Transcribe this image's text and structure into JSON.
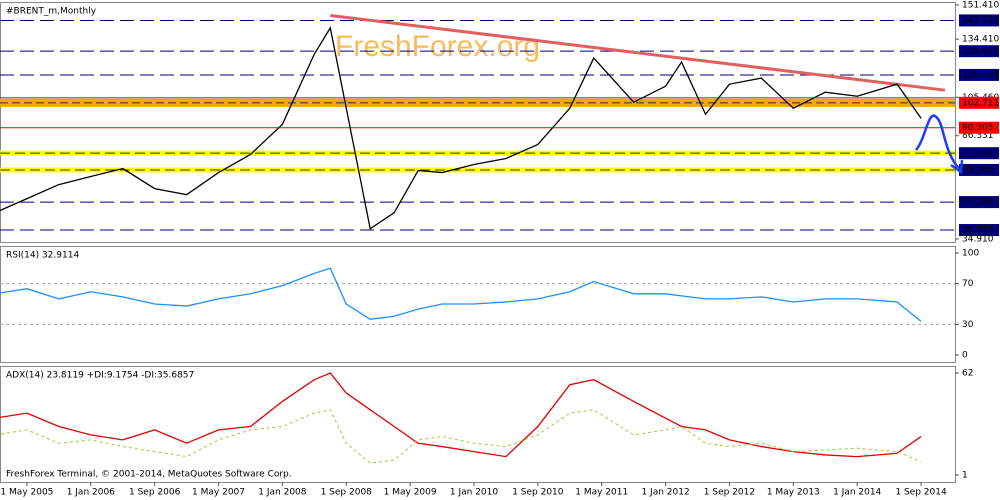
{
  "chart_data": [
    {
      "type": "line",
      "title": "#BRENT_m,Monthly",
      "watermark": "FreshForex.org",
      "xlim": [
        "2005-02-01",
        "2014-12-01"
      ],
      "ylim": [
        34.91,
        151.41
      ],
      "yticks": [
        {
          "value": 151.41,
          "label": "151.410"
        },
        {
          "value": 134.41,
          "label": "134.410"
        },
        {
          "value": 105.46,
          "label": "105.460"
        },
        86.331,
        {
          "value": 34.91,
          "label": "34.910"
        }
      ],
      "levels": [
        {
          "value": 143.721,
          "label": "143.721",
          "color": "#00007f",
          "style": "dash"
        },
        {
          "value": 128.417,
          "label": "128.417",
          "color": "#00007f",
          "style": "dash"
        },
        {
          "value": 116.59,
          "label": "116.590",
          "color": "#00007f",
          "style": "dash"
        },
        {
          "value": 102.711,
          "label": "102.711",
          "color": "#ff0000",
          "style": "band"
        },
        {
          "value": 90.305,
          "label": "90.305",
          "color": "#ff0000",
          "style": "solid"
        },
        {
          "value": 77.634,
          "label": "77.634",
          "color": "#00007f",
          "style": "yellow"
        },
        {
          "value": 69.286,
          "label": "69.286",
          "color": "#00007f",
          "style": "yellow"
        },
        {
          "value": 53.286,
          "label": "53.286",
          "color": "#00007f",
          "style": "dash"
        },
        {
          "value": 39.373,
          "label": "39.373",
          "color": "#00007f",
          "style": "dash"
        }
      ],
      "trendline": {
        "x": [
          "2008-07-01",
          "2014-12-01"
        ],
        "values": [
          146.2,
          109
        ],
        "color": "#e06060"
      },
      "x": [
        "2005-01-01",
        "2005-05-01",
        "2005-09-01",
        "2006-01-01",
        "2006-05-01",
        "2006-09-01",
        "2007-01-01",
        "2007-05-01",
        "2007-09-01",
        "2008-01-01",
        "2008-05-01",
        "2008-07-01",
        "2008-09-01",
        "2008-12-01",
        "2009-03-01",
        "2009-06-01",
        "2009-09-01",
        "2010-01-01",
        "2010-05-01",
        "2010-09-01",
        "2011-01-01",
        "2011-04-01",
        "2011-09-01",
        "2012-01-01",
        "2012-03-01",
        "2012-06-01",
        "2012-09-01",
        "2013-01-01",
        "2013-05-01",
        "2013-09-01",
        "2014-01-01",
        "2014-06-01",
        "2014-09-01"
      ],
      "series": [
        {
          "color": "#000000",
          "values": [
            48,
            55,
            62,
            66,
            70,
            60,
            57,
            68,
            77,
            92,
            127,
            140,
            100,
            40,
            48,
            69,
            68,
            72,
            75,
            82,
            100,
            125,
            103,
            111,
            123,
            97,
            112,
            115,
            100,
            108,
            106,
            112,
            95
          ]
        }
      ]
    },
    {
      "type": "line",
      "title": "RSI(14) 32.9114",
      "xlim": [
        "2005-02-01",
        "2014-12-01"
      ],
      "ylim": [
        0,
        100
      ],
      "yticks": [
        100,
        70,
        30,
        0
      ],
      "x": [
        "2005-01-01",
        "2005-05-01",
        "2005-09-01",
        "2006-01-01",
        "2006-05-01",
        "2006-09-01",
        "2007-01-01",
        "2007-05-01",
        "2007-09-01",
        "2008-01-01",
        "2008-05-01",
        "2008-07-01",
        "2008-09-01",
        "2008-12-01",
        "2009-03-01",
        "2009-06-01",
        "2009-09-01",
        "2010-01-01",
        "2010-05-01",
        "2010-09-01",
        "2011-01-01",
        "2011-04-01",
        "2011-09-01",
        "2012-01-01",
        "2012-03-01",
        "2012-06-01",
        "2012-09-01",
        "2013-01-01",
        "2013-05-01",
        "2013-09-01",
        "2014-01-01",
        "2014-06-01",
        "2014-09-01"
      ],
      "series": [
        {
          "color": "#1e90ff",
          "values": [
            60,
            65,
            55,
            62,
            57,
            50,
            48,
            55,
            60,
            68,
            80,
            85,
            50,
            35,
            38,
            45,
            50,
            50,
            52,
            55,
            62,
            72,
            60,
            60,
            58,
            55,
            55,
            57,
            52,
            55,
            55,
            52,
            33
          ]
        }
      ]
    },
    {
      "type": "line",
      "title": "ADX(14) 23.8119 +DI:9.1754 -DI:35.6857",
      "footer": "FreshForex Terminal, © 2001-2014, MetaQuotes Software Corp.",
      "xlim": [
        "2005-02-01",
        "2014-12-01"
      ],
      "ylim": [
        1,
        62
      ],
      "yticks": [
        62,
        1
      ],
      "xticks": [
        {
          "value": "2005-05-01",
          "label": "1 May 2005"
        },
        {
          "value": "2006-01-01",
          "label": "1 Jan 2006"
        },
        {
          "value": "2006-09-01",
          "label": "1 Sep 2006"
        },
        {
          "value": "2007-05-01",
          "label": "1 May 2007"
        },
        {
          "value": "2008-01-01",
          "label": "1 Jan 2008"
        },
        {
          "value": "2008-09-01",
          "label": "1 Sep 2008"
        },
        {
          "value": "2009-05-01",
          "label": "1 May 2009"
        },
        {
          "value": "2010-01-01",
          "label": "1 Jan 2010"
        },
        {
          "value": "2010-09-01",
          "label": "1 Sep 2010"
        },
        {
          "value": "2011-05-01",
          "label": "1 May 2011"
        },
        {
          "value": "2012-01-01",
          "label": "1 Jan 2012"
        },
        {
          "value": "2012-09-01",
          "label": "1 Sep 2012"
        },
        {
          "value": "2013-05-01",
          "label": "1 May 2013"
        },
        {
          "value": "2014-01-01",
          "label": "1 Jan 2014"
        },
        {
          "value": "2014-09-01",
          "label": "1 Sep 2014"
        }
      ],
      "x": [
        "2005-01-01",
        "2005-05-01",
        "2005-09-01",
        "2006-01-01",
        "2006-05-01",
        "2006-09-01",
        "2007-01-01",
        "2007-05-01",
        "2007-09-01",
        "2008-01-01",
        "2008-05-01",
        "2008-07-01",
        "2008-09-01",
        "2008-12-01",
        "2009-03-01",
        "2009-06-01",
        "2009-09-01",
        "2010-01-01",
        "2010-05-01",
        "2010-09-01",
        "2011-01-01",
        "2011-04-01",
        "2011-09-01",
        "2012-01-01",
        "2012-03-01",
        "2012-06-01",
        "2012-09-01",
        "2013-01-01",
        "2013-05-01",
        "2013-09-01",
        "2014-01-01",
        "2014-06-01",
        "2014-09-01"
      ],
      "series": [
        {
          "color": "#e00000",
          "values": [
            35,
            38,
            30,
            25,
            22,
            28,
            20,
            28,
            30,
            45,
            58,
            62,
            50,
            40,
            30,
            20,
            18,
            15,
            12,
            30,
            55,
            58,
            45,
            35,
            30,
            28,
            22,
            18,
            15,
            13,
            12,
            14,
            24
          ]
        },
        {
          "color": "#9acd32",
          "dash": true,
          "values": [
            25,
            28,
            20,
            22,
            18,
            15,
            12,
            22,
            28,
            30,
            38,
            40,
            20,
            8,
            10,
            22,
            24,
            20,
            18,
            25,
            38,
            40,
            25,
            28,
            30,
            20,
            18,
            20,
            15,
            16,
            17,
            15,
            9
          ]
        }
      ]
    }
  ]
}
